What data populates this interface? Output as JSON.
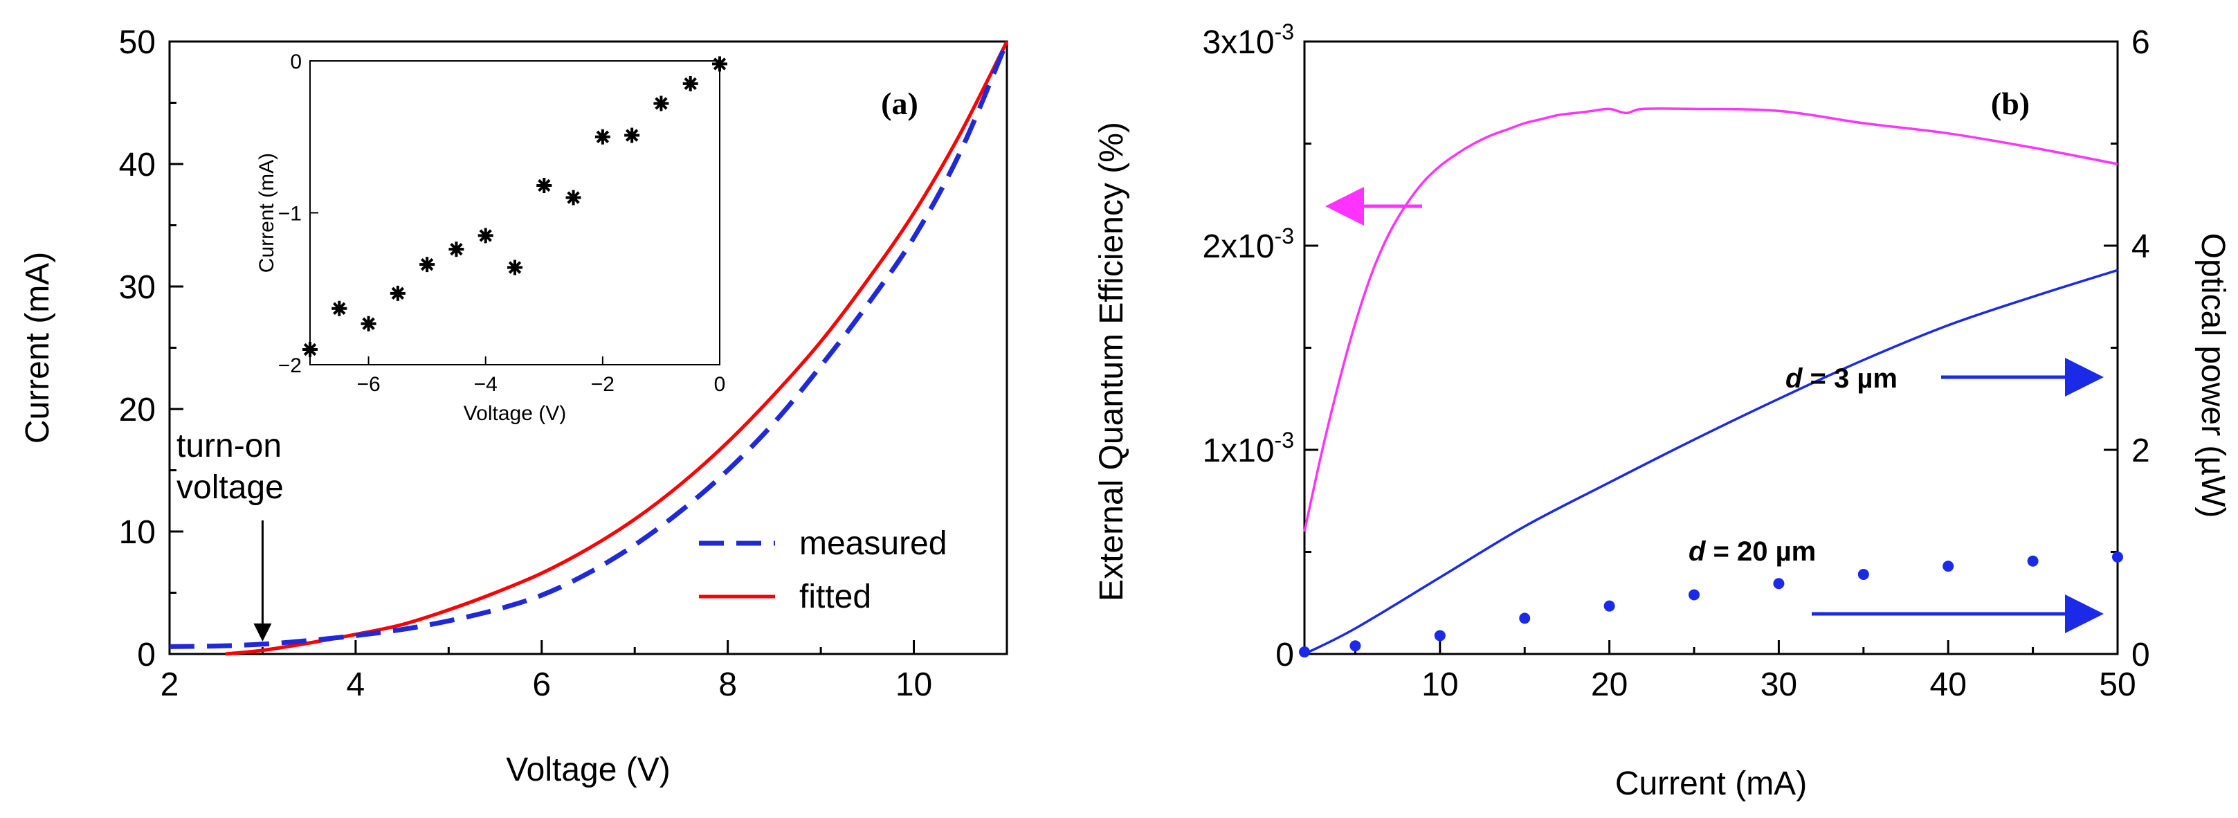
{
  "colors": {
    "measured": "#1f2ad6",
    "fitted": "#ff0000",
    "eqe": "#ff33ff",
    "power": "#1a2ae6",
    "scatter": "#1a2ae6",
    "axis": "#000000"
  },
  "chart_data": [
    {
      "id": "a",
      "type": "line",
      "panel_label": "(a)",
      "xlabel": "Voltage (V)",
      "ylabel": "Current (mA)",
      "xlim": [
        2,
        11
      ],
      "ylim": [
        0,
        50
      ],
      "xticks": [
        2,
        4,
        6,
        8,
        10
      ],
      "yticks": [
        0,
        10,
        20,
        30,
        40,
        50
      ],
      "series": [
        {
          "name": "measured",
          "style": "dashed",
          "x": [
            2,
            2.5,
            3,
            3.5,
            4,
            4.5,
            5,
            5.5,
            6,
            6.5,
            7,
            7.5,
            8,
            8.5,
            9,
            9.5,
            10,
            10.5,
            11
          ],
          "y": [
            0.6,
            0.65,
            0.8,
            1.1,
            1.5,
            2.0,
            2.7,
            3.6,
            4.8,
            6.6,
            8.9,
            11.7,
            15.0,
            18.9,
            23.5,
            28.5,
            34.0,
            41.0,
            50.0
          ]
        },
        {
          "name": "fitted",
          "style": "solid",
          "x": [
            2.6,
            3,
            3.5,
            4,
            4.5,
            5,
            5.5,
            6,
            6.5,
            7,
            7.5,
            8,
            8.5,
            9,
            9.5,
            10,
            10.5,
            11
          ],
          "y": [
            0,
            0.3,
            0.9,
            1.6,
            2.4,
            3.6,
            5.0,
            6.6,
            8.6,
            11.0,
            13.9,
            17.3,
            21.2,
            25.5,
            30.5,
            36.0,
            42.5,
            50.0
          ]
        }
      ],
      "annotations": [
        {
          "text_lines": [
            "turn-on",
            "voltage"
          ],
          "x": 3,
          "y": 0.8
        }
      ],
      "legend": {
        "placement": "lower-right",
        "entries": [
          "measured",
          "fitted"
        ]
      },
      "inset": {
        "type": "scatter",
        "xlabel": "Voltage (V)",
        "ylabel": "Current (mA)",
        "xlim": [
          -7,
          0
        ],
        "ylim": [
          -2,
          0
        ],
        "xticks": [
          -6,
          -4,
          -2,
          0
        ],
        "yticks": [
          0,
          -1,
          -2
        ],
        "x": [
          -7,
          -6.5,
          -6,
          -5.5,
          -5,
          -4.5,
          -4,
          -3.5,
          -3,
          -2.5,
          -2,
          -1.5,
          -1,
          -0.5,
          0
        ],
        "y": [
          -1.9,
          -1.63,
          -1.73,
          -1.53,
          -1.34,
          -1.24,
          -1.15,
          -1.36,
          -0.82,
          -0.9,
          -0.5,
          -0.49,
          -0.28,
          -0.15,
          -0.02
        ]
      }
    },
    {
      "id": "b",
      "type": "line",
      "panel_label": "(b)",
      "xlabel": "Current (mA)",
      "ylabel": "External Quantum Efficiency (%)",
      "y2label": "Optical power (µW)",
      "xlim": [
        2,
        50
      ],
      "ylim": [
        0,
        0.003
      ],
      "y2lim": [
        0,
        6
      ],
      "xticks": [
        10,
        20,
        30,
        40,
        50
      ],
      "yticks": [
        {
          "value": 0,
          "mant": "0",
          "exp": ""
        },
        {
          "value": 0.001,
          "mant": "1x10",
          "exp": "-3"
        },
        {
          "value": 0.002,
          "mant": "2x10",
          "exp": "-3"
        },
        {
          "value": 0.003,
          "mant": "3x10",
          "exp": "-3"
        }
      ],
      "y2ticks": [
        0,
        2,
        4,
        6
      ],
      "series": [
        {
          "name": "EQE",
          "axis": "left",
          "x": [
            2,
            3,
            4,
            5,
            6,
            7,
            8,
            9,
            10,
            11,
            12,
            13,
            14,
            15,
            16,
            17,
            18,
            19,
            20,
            21,
            22,
            25,
            30,
            35,
            40,
            45,
            50
          ],
          "y": [
            0.0006,
            0.00098,
            0.00132,
            0.00162,
            0.00187,
            0.00206,
            0.0022,
            0.00231,
            0.00239,
            0.00245,
            0.0025,
            0.00254,
            0.00257,
            0.0026,
            0.00262,
            0.00264,
            0.00265,
            0.00266,
            0.00267,
            0.00265,
            0.00267,
            0.00267,
            0.00266,
            0.0026,
            0.00255,
            0.00248,
            0.0024
          ]
        },
        {
          "name": "Optical power d = 3 µm",
          "axis": "right",
          "x": [
            2,
            5,
            10,
            15,
            20,
            25,
            30,
            35,
            40,
            45,
            50
          ],
          "y": [
            0,
            0.25,
            0.75,
            1.25,
            1.68,
            2.1,
            2.5,
            2.88,
            3.22,
            3.5,
            3.76
          ]
        },
        {
          "name": "Optical power d = 20 µm",
          "axis": "right",
          "style": "dots",
          "x": [
            2,
            5,
            10,
            15,
            20,
            25,
            30,
            35,
            40,
            45,
            50
          ],
          "y": [
            0.02,
            0.08,
            0.18,
            0.35,
            0.47,
            0.58,
            0.69,
            0.78,
            0.86,
            0.91,
            0.95
          ]
        }
      ],
      "labels": [
        {
          "italic": "d",
          "rest": " = 3 µm"
        },
        {
          "italic": "d",
          "rest": " = 20 µm"
        }
      ]
    }
  ]
}
